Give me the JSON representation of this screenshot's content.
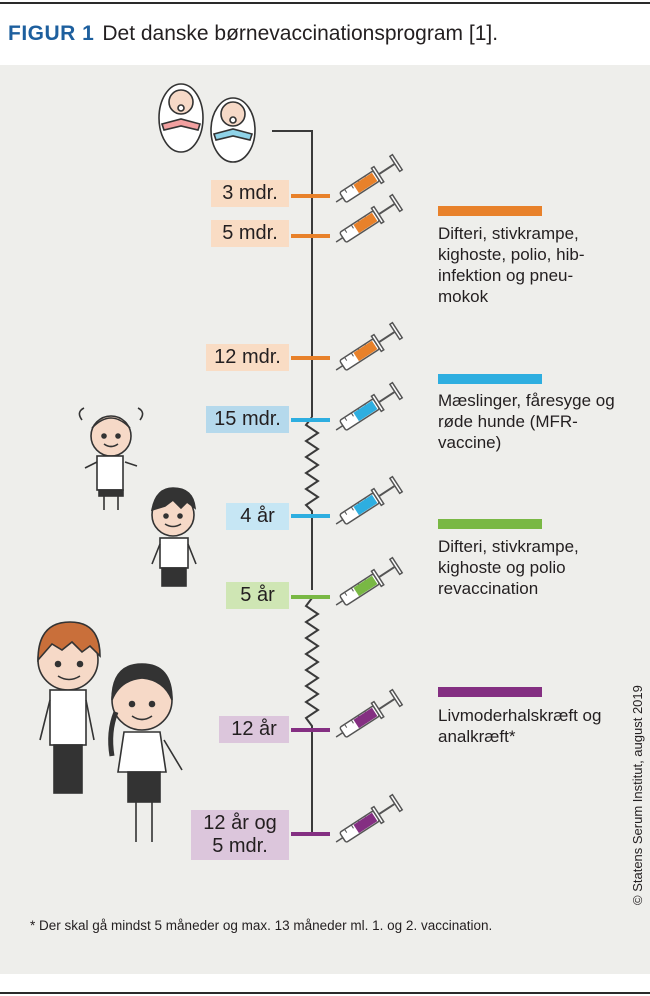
{
  "caption": {
    "figure_label": "FIGUR 1",
    "text": "Det danske børnevaccinationsprogram [1]."
  },
  "colors": {
    "orange": "#e8812a",
    "blue": "#2eaee0",
    "green": "#79b844",
    "purple": "#842f82"
  },
  "timeline": [
    {
      "label": "3 mdr.",
      "vaccine": "orange"
    },
    {
      "label": "5 mdr.",
      "vaccine": "orange"
    },
    {
      "label": "12 mdr.",
      "vaccine": "orange"
    },
    {
      "label": "15 mdr.",
      "vaccine": "blue"
    },
    {
      "label": "4 år",
      "vaccine": "blue"
    },
    {
      "label": "5 år",
      "vaccine": "green"
    },
    {
      "label": "12 år",
      "vaccine": "purple"
    },
    {
      "label_line1": "12 år og",
      "label_line2": "5 mdr.",
      "vaccine": "purple"
    }
  ],
  "legend": [
    {
      "color": "orange",
      "text": "Difteri, stivkrampe, kighoste, polio, hib-infektion og pneu-mokok"
    },
    {
      "color": "blue",
      "text": "Mæslinger, fåresyge og røde hunde (MFR-vaccine)"
    },
    {
      "color": "green",
      "text": "Difteri, stivkrampe, kighoste og polio revaccination"
    },
    {
      "color": "purple",
      "text": "Livmoderhalskræft og analkræft*"
    }
  ],
  "footnote": "* Der skal gå mindst 5 måneder og max. 13 måneder ml. 1. og 2. vaccination.",
  "copyright": "© Statens Serum Institut, august 2019",
  "icons": [
    "baby-girl-icon",
    "baby-boy-icon",
    "girl-pigtails-icon",
    "boy-icon",
    "older-boy-icon",
    "older-girl-icon",
    "syringe-icon"
  ]
}
